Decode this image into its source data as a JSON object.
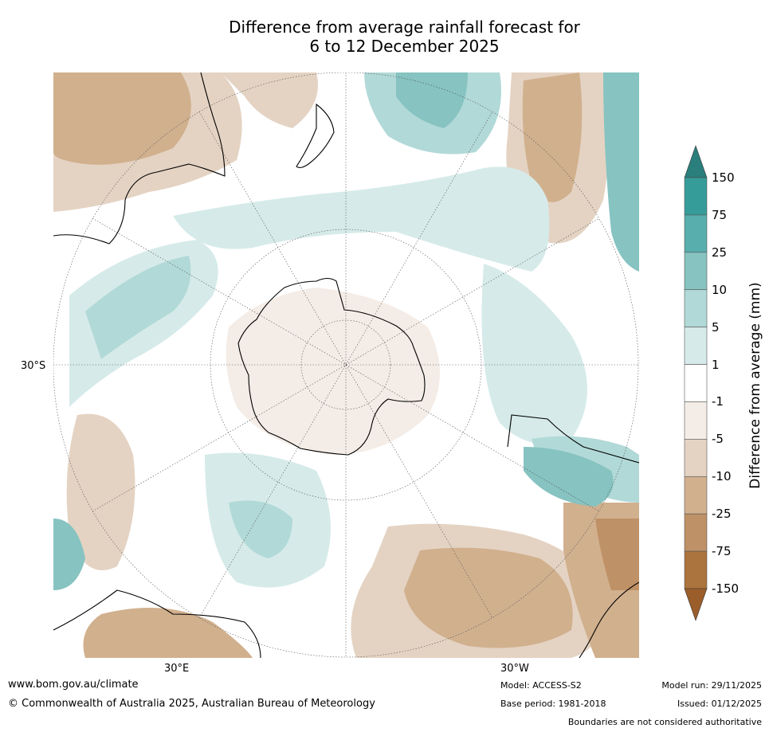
{
  "title": {
    "line1": "Difference from average rainfall forecast for",
    "line2": "6 to 12 December 2025"
  },
  "map": {
    "lat_label": "30°S",
    "lon_labels": [
      "30°E",
      "30°W"
    ]
  },
  "colorbar": {
    "title": "Difference from average (mm)",
    "tick_labels": [
      "150",
      "75",
      "25",
      "10",
      "5",
      "1",
      "-1",
      "-5",
      "-10",
      "-25",
      "-75",
      "-150"
    ],
    "colors": [
      "#2a7f7d",
      "#369c9a",
      "#58adad",
      "#86c3c1",
      "#b1d9d7",
      "#d6ebe9",
      "#ffffff",
      "#f4ece6",
      "#e4d3c3",
      "#d1b08e",
      "#bf9166",
      "#ab733d",
      "#9b5e2a"
    ],
    "extend_top_color": "#2a7f7d",
    "extend_bottom_color": "#9b5e2a"
  },
  "footer": {
    "website": "www.bom.gov.au/climate",
    "copyright": "© Commonwealth of Australia 2025, Australian Bureau of Meteorology",
    "model": "Model: ACCESS-S2",
    "base_period": "Base period: 1981-2018",
    "model_run": "Model run: 29/11/2025",
    "issued": "Issued: 01/12/2025",
    "disclaimer": "Boundaries are not considered authoritative"
  }
}
